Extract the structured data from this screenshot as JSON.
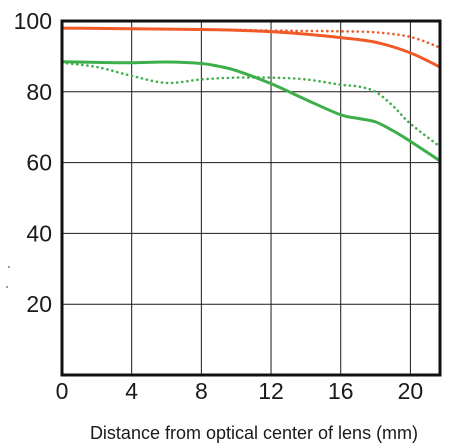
{
  "chart_data": {
    "type": "line",
    "title": "",
    "xlabel": "Distance from optical center of lens (mm)",
    "ylabel": "",
    "xlim": [
      0,
      21.7
    ],
    "ylim": [
      0,
      100
    ],
    "xticks": [
      0,
      4,
      8,
      12,
      16,
      20
    ],
    "xtick_labels": [
      "0",
      "4",
      "8",
      "12",
      "16",
      "20"
    ],
    "yticks": [
      20,
      40,
      60,
      80,
      100
    ],
    "ytick_labels": [
      "20",
      "40",
      "60",
      "80",
      "100"
    ],
    "grid": true,
    "legend": "none",
    "series": [
      {
        "color": "#f05a28",
        "style": "solid",
        "x": [
          0,
          2,
          4,
          6,
          8,
          10,
          12,
          14,
          16,
          18,
          20,
          21.7
        ],
        "y": [
          98,
          97.9,
          97.8,
          97.7,
          97.6,
          97.4,
          97,
          96.3,
          95.3,
          94,
          91,
          87
        ]
      },
      {
        "color": "#f05a28",
        "style": "dotted",
        "x": [
          0,
          2,
          4,
          6,
          8,
          10,
          12,
          14,
          16,
          18,
          20,
          21.7
        ],
        "y": [
          98,
          97.9,
          97.8,
          97.7,
          97.6,
          97.5,
          97.3,
          97.2,
          97.1,
          96.8,
          95.5,
          92.5
        ]
      },
      {
        "color": "#3dae49",
        "style": "solid",
        "x": [
          0,
          2,
          4,
          6,
          8,
          9,
          10,
          12,
          14,
          16,
          17,
          18,
          19,
          20,
          21.7
        ],
        "y": [
          88.5,
          88.3,
          88.2,
          88.4,
          88,
          87.2,
          86,
          82.3,
          77.8,
          73.5,
          72.5,
          71.5,
          69,
          66,
          60.5
        ]
      },
      {
        "color": "#3dae49",
        "style": "dotted",
        "x": [
          0,
          2,
          4,
          6,
          8,
          10,
          12,
          14,
          16,
          17,
          18,
          19,
          20,
          21.7
        ],
        "y": [
          88.2,
          87,
          84.5,
          82.5,
          83.5,
          84,
          84,
          83.5,
          82,
          81.5,
          80,
          76,
          71,
          64.5
        ]
      }
    ]
  }
}
